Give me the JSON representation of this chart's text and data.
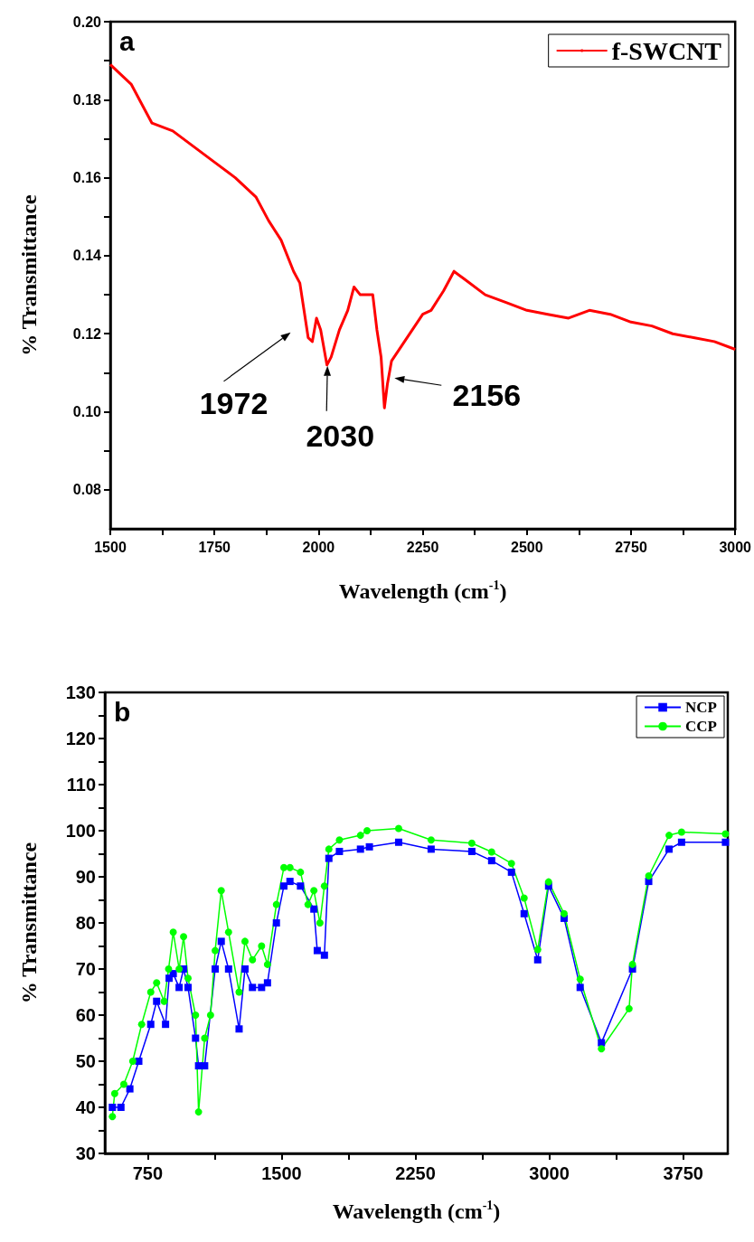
{
  "chart_data": [
    {
      "type": "line",
      "xlabel": "Wavelength (cm$^{-1}$)",
      "ylabel": "% Transmittance",
      "legend": "top right",
      "xlim": [
        1500,
        3000
      ],
      "ylim": [
        0.07,
        0.2
      ],
      "xticks": [
        1500,
        {
          "value": 1625,
          "label": null
        },
        1750,
        {
          "value": 1875,
          "label": null
        },
        2000,
        {
          "value": 2125,
          "label": null
        },
        2250,
        {
          "value": 2375,
          "label": null
        },
        2500,
        {
          "value": 2625,
          "label": null
        },
        2750,
        {
          "value": 2875,
          "label": null
        },
        3000
      ],
      "yticks": [
        {
          "value": 0.08,
          "label": "0.08"
        },
        {
          "value": 0.09,
          "label": null
        },
        {
          "value": 0.1,
          "label": "0.10"
        },
        {
          "value": 0.11,
          "label": null
        },
        {
          "value": 0.12,
          "label": "0.12"
        },
        {
          "value": 0.13,
          "label": null
        },
        {
          "value": 0.14,
          "label": "0.14"
        },
        {
          "value": 0.15,
          "label": null
        },
        {
          "value": 0.16,
          "label": "0.16"
        },
        {
          "value": 0.17,
          "label": null
        },
        {
          "value": 0.18,
          "label": "0.18"
        },
        {
          "value": 0.19,
          "label": null
        },
        {
          "value": 0.2,
          "label": "0.20"
        }
      ],
      "annotations": [
        "a",
        {
          "text": "1972",
          "x": 1972,
          "y": 0.118
        },
        {
          "text": "2030",
          "x": 2030,
          "y": 0.112
        },
        {
          "text": "2156",
          "x": 2156,
          "y": 0.101
        }
      ],
      "series": [
        {
          "name": "f-SWCNT",
          "color": "#ff0000",
          "x": [
            1500,
            1520,
            1550,
            1580,
            1600,
            1650,
            1700,
            1750,
            1800,
            1850,
            1880,
            1910,
            1940,
            1955,
            1965,
            1975,
            1985,
            1995,
            2005,
            2020,
            2030,
            2050,
            2070,
            2085,
            2100,
            2130,
            2140,
            2150,
            2158,
            2165,
            2175,
            2200,
            2250,
            2270,
            2300,
            2325,
            2350,
            2400,
            2450,
            2500,
            2550,
            2600,
            2650,
            2700,
            2750,
            2800,
            2850,
            2900,
            2950,
            3000
          ],
          "values": [
            0.189,
            0.187,
            0.184,
            0.178,
            0.174,
            0.172,
            0.168,
            0.164,
            0.16,
            0.155,
            0.149,
            0.144,
            0.136,
            0.133,
            0.126,
            0.119,
            0.118,
            0.124,
            0.121,
            0.112,
            0.114,
            0.121,
            0.126,
            0.132,
            0.13,
            0.13,
            0.121,
            0.114,
            0.101,
            0.107,
            0.113,
            0.117,
            0.125,
            0.126,
            0.131,
            0.136,
            0.134,
            0.13,
            0.128,
            0.126,
            0.125,
            0.124,
            0.126,
            0.125,
            0.123,
            0.122,
            0.12,
            0.119,
            0.118,
            0.116
          ]
        }
      ]
    },
    {
      "type": "line",
      "xlabel": "Wavelength (cm$^{-1}$)",
      "ylabel": "% Transmittance",
      "legend": "top right",
      "xlim": [
        510,
        4000
      ],
      "ylim": [
        30,
        130
      ],
      "xticks": [
        750,
        {
          "value": 1125,
          "label": null
        },
        1500,
        {
          "value": 1875,
          "label": null
        },
        2250,
        {
          "value": 2625,
          "label": null
        },
        3000,
        {
          "value": 3375,
          "label": null
        },
        3750
      ],
      "yticks": [
        30,
        {
          "value": 35,
          "label": null
        },
        40,
        {
          "value": 45,
          "label": null
        },
        50,
        {
          "value": 55,
          "label": null
        },
        60,
        {
          "value": 65,
          "label": null
        },
        70,
        {
          "value": 75,
          "label": null
        },
        80,
        {
          "value": 85,
          "label": null
        },
        90,
        {
          "value": 95,
          "label": null
        },
        100,
        {
          "value": 105,
          "label": null
        },
        110,
        {
          "value": 115,
          "label": null
        },
        120,
        {
          "value": 125,
          "label": null
        },
        130
      ],
      "annotations": [
        "b"
      ],
      "series": [
        {
          "name": "NCP",
          "color": "#0000ff",
          "marker": "square",
          "x": [
            552,
            600,
            650,
            700,
            767,
            800,
            850,
            870,
            893,
            926,
            951,
            976,
            1018,
            1035,
            1069,
            1128,
            1162,
            1203,
            1262,
            1295,
            1337,
            1388,
            1421,
            1471,
            1513,
            1547,
            1606,
            1681,
            1700,
            1740,
            1765,
            1824,
            1942,
            1992,
            2156,
            2338,
            2566,
            2677,
            2788,
            2859,
            2935,
            2996,
            3083,
            3173,
            3292,
            3466,
            3557,
            3671,
            3741,
            3987
          ],
          "values": [
            40,
            40,
            44,
            50,
            58,
            63,
            58,
            68,
            69,
            66,
            70,
            66,
            55,
            49,
            49,
            70,
            76,
            70,
            57,
            70,
            66,
            66,
            67,
            80,
            88,
            89,
            88,
            83,
            74,
            73,
            94,
            95.5,
            96,
            96.5,
            97.5,
            96,
            95.5,
            93.5,
            91,
            82,
            72,
            88,
            81,
            66,
            54,
            70,
            89,
            96,
            97.5,
            97.5
          ]
        },
        {
          "name": "CCP",
          "color": "#00ff00",
          "marker": "circle",
          "x": [
            552,
            565,
            616,
            666,
            716,
            767,
            800,
            842,
            867,
            893,
            926,
            951,
            976,
            1018,
            1035,
            1069,
            1102,
            1128,
            1162,
            1203,
            1262,
            1295,
            1337,
            1388,
            1421,
            1471,
            1513,
            1547,
            1606,
            1648,
            1681,
            1715,
            1740,
            1765,
            1824,
            1942,
            1979,
            2156,
            2338,
            2566,
            2677,
            2788,
            2859,
            2935,
            2996,
            3083,
            3173,
            3292,
            3447,
            3466,
            3557,
            3671,
            3741,
            3987
          ],
          "values": [
            38,
            43,
            45,
            50,
            58,
            65,
            67,
            63,
            70,
            78,
            70,
            77,
            68,
            60,
            39,
            55,
            60,
            74,
            87,
            78,
            65,
            76,
            72,
            75,
            71,
            84,
            92,
            92,
            91,
            84,
            87,
            80,
            88,
            96,
            98,
            99,
            100,
            100.5,
            98,
            97.3,
            95.4,
            92.9,
            85.4,
            74.2,
            88.9,
            82,
            67.8,
            52.7,
            61.4,
            71,
            90.2,
            99,
            99.7,
            99.3
          ]
        }
      ]
    }
  ]
}
